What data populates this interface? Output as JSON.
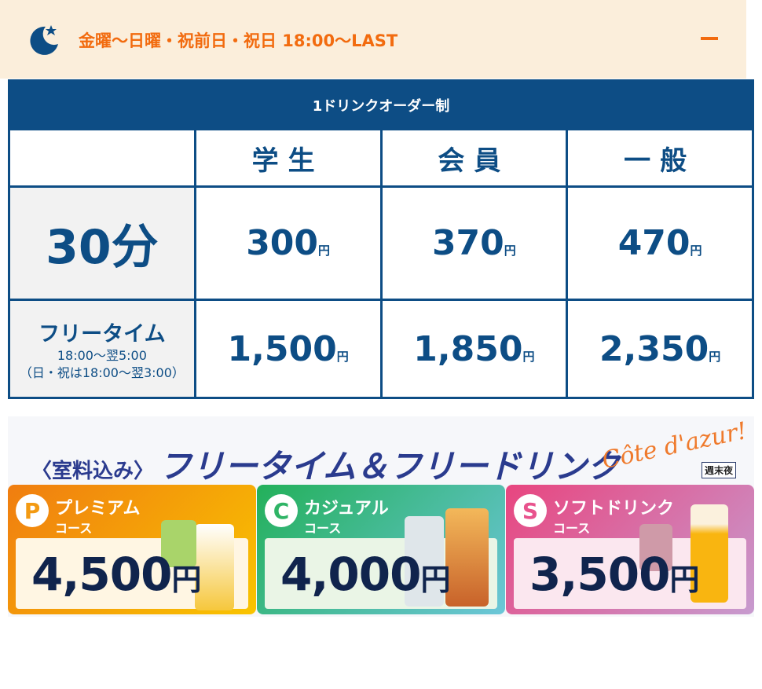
{
  "accordion": {
    "title": "金曜〜日曜・祝前日・祝日 18:00〜LAST",
    "icon": "moon-star-icon",
    "toggle_icon": "minus-icon"
  },
  "table": {
    "caption": "1ドリンクオーダー制",
    "columns": [
      "学生",
      "会員",
      "一般"
    ],
    "rows": [
      {
        "label": "30分",
        "values": [
          "300",
          "370",
          "470"
        ]
      },
      {
        "label": "フリータイム",
        "sub1": "18:00〜翌5:00",
        "sub2": "（日・祝は18:00〜翌3:00）",
        "values": [
          "1,500",
          "1,850",
          "2,350"
        ]
      }
    ],
    "yen": "円"
  },
  "banner": {
    "prefix": "〈室料込み〉",
    "title": "フリータイム＆フリードリンク",
    "logo": "Côte d'azur!",
    "badge": "週末夜",
    "courses": [
      {
        "letter": "P",
        "name": "プレミアム",
        "course": "コース",
        "price": "4,500",
        "color": "#f39a12"
      },
      {
        "letter": "C",
        "name": "カジュアル",
        "course": "コース",
        "price": "4,000",
        "color": "#2fb466"
      },
      {
        "letter": "S",
        "name": "ソフトドリンク",
        "course": "コース",
        "price": "3,500",
        "color": "#e8538d"
      }
    ]
  },
  "colors": {
    "accent": "#f26b0f",
    "primary": "#0d4d85"
  }
}
